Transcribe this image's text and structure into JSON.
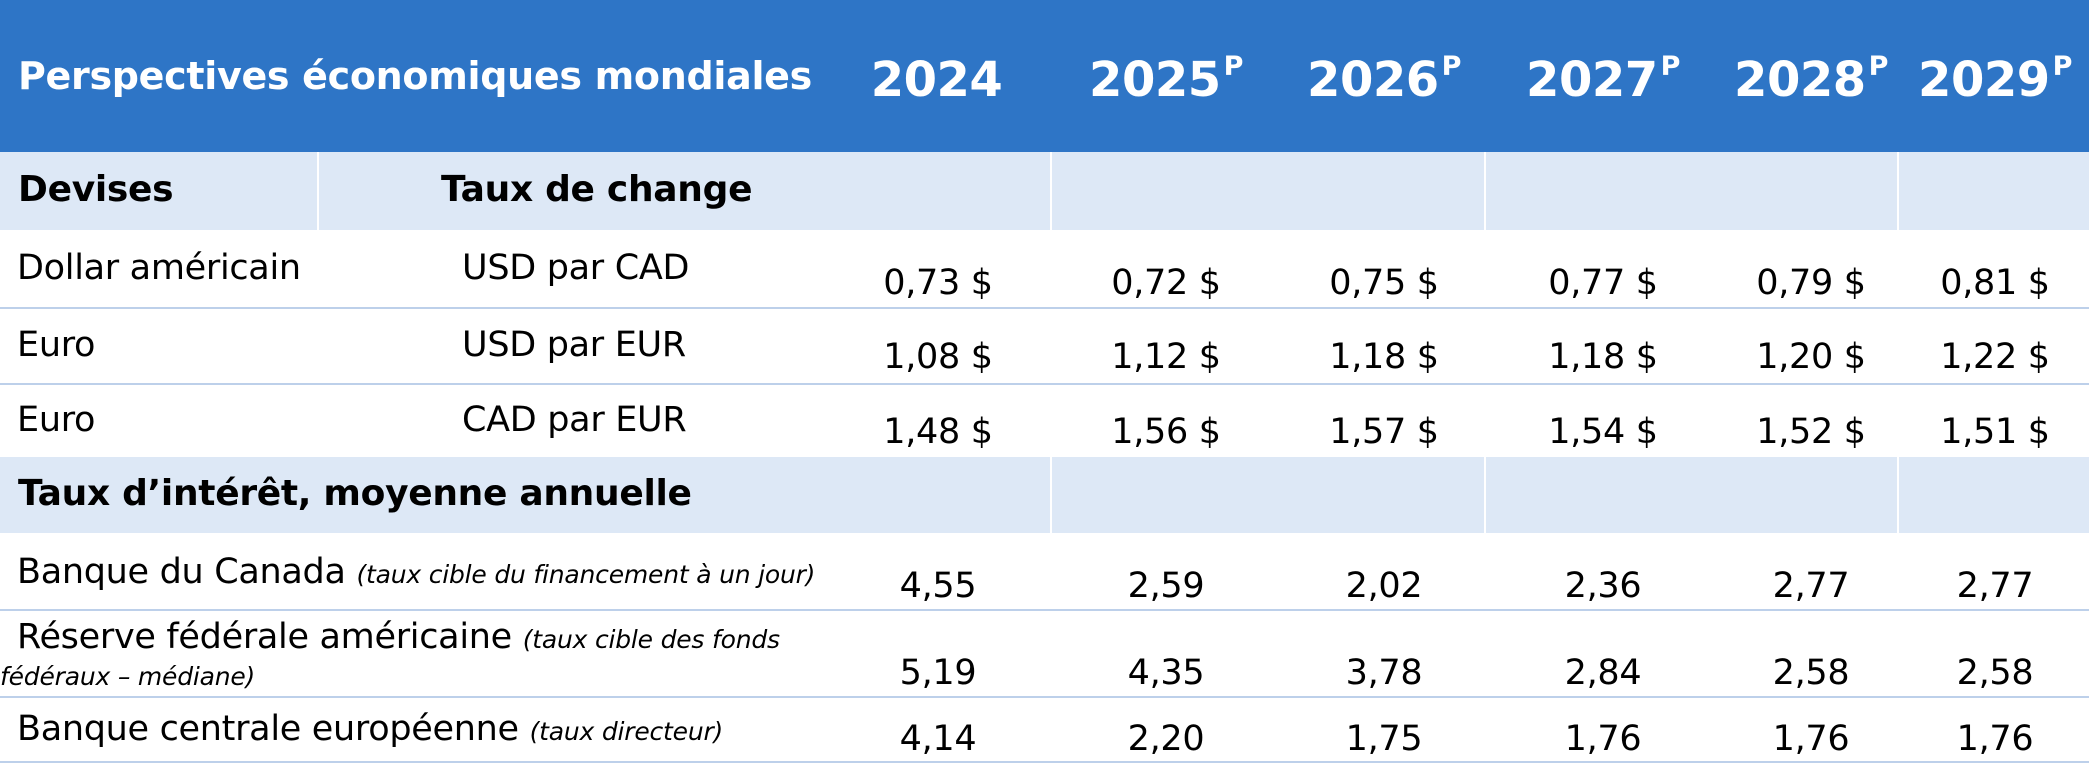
{
  "header": {
    "title": "Perspectives économiques mondiales",
    "years": [
      {
        "year": "2024",
        "sup": ""
      },
      {
        "year": "2025",
        "sup": "P"
      },
      {
        "year": "2026",
        "sup": "P"
      },
      {
        "year": "2027",
        "sup": "P"
      },
      {
        "year": "2028",
        "sup": "P"
      },
      {
        "year": "2029",
        "sup": "P"
      }
    ]
  },
  "currency_section": {
    "label_left": "Devises",
    "label_right": "Taux de change",
    "rows": [
      {
        "name": "Dollar américain",
        "rate": "USD par CAD",
        "values": [
          "0,73 $",
          "0,72 $",
          "0,75 $",
          "0,77 $",
          "0,79 $",
          "0,81 $"
        ]
      },
      {
        "name": "Euro",
        "rate": "USD par EUR",
        "values": [
          "1,08 $",
          "1,12 $",
          "1,18 $",
          "1,18 $",
          "1,20 $",
          "1,22 $"
        ]
      },
      {
        "name": "Euro",
        "rate": "CAD par EUR",
        "values": [
          "1,48 $",
          "1,56 $",
          "1,57 $",
          "1,54 $",
          "1,52 $",
          "1,51 $"
        ]
      }
    ]
  },
  "interest_section": {
    "label": "Taux d’intérêt, moyenne annuelle",
    "rows": [
      {
        "name": "Banque du Canada",
        "note": "(taux cible du financement à un jour)",
        "values": [
          "4,55",
          "2,59",
          "2,02",
          "2,36",
          "2,77",
          "2,77"
        ]
      },
      {
        "name": "Réserve fédérale américaine",
        "note_line1": "(taux cible des fonds",
        "note_line2": "fédéraux – médiane)",
        "values": [
          "5,19",
          "4,35",
          "3,78",
          "2,84",
          "2,58",
          "2,58"
        ]
      },
      {
        "name": "Banque centrale européenne",
        "note": "(taux directeur)",
        "values": [
          "4,14",
          "2,20",
          "1,75",
          "1,76",
          "1,76",
          "1,76"
        ]
      }
    ]
  },
  "colors": {
    "header_bg": "#2e75c6",
    "band_bg": "#dde8f6",
    "grid_line": "#bdd0ea"
  }
}
